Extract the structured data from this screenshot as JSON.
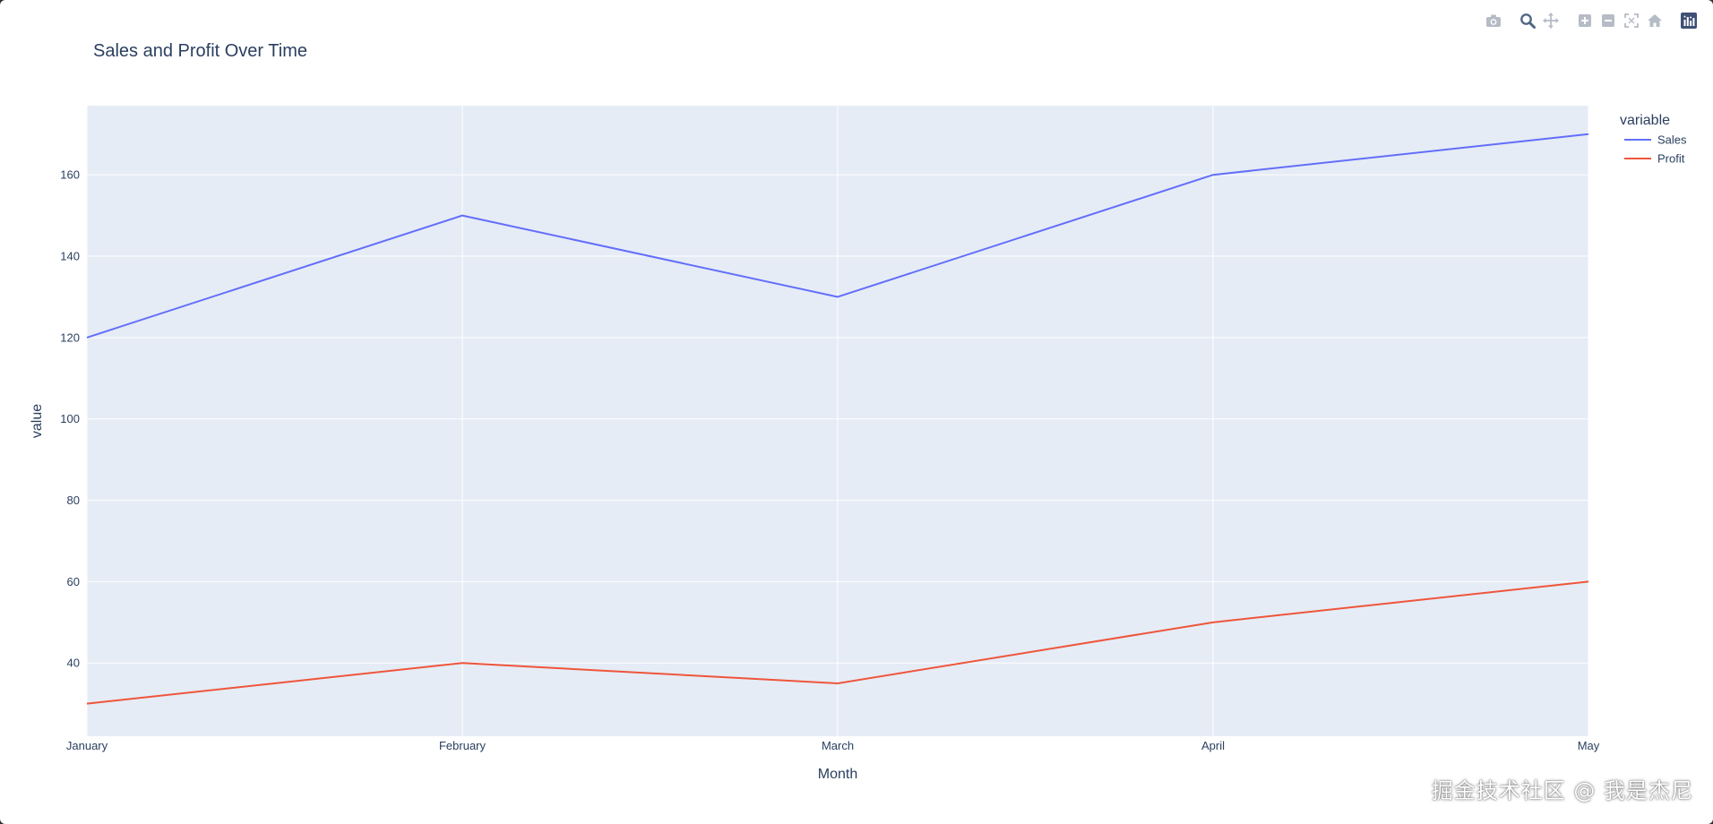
{
  "colors": {
    "plot_bg": "#e5ecf6",
    "grid": "#ffffff",
    "text": "#2a3f5f",
    "modebar_icon": "#b5bcc6",
    "modebar_active": "#506784"
  },
  "modebar": {
    "buttons": [
      {
        "name": "camera-icon"
      },
      {
        "name": "zoom-icon"
      },
      {
        "name": "pan-icon"
      },
      {
        "name": "zoom-in-icon"
      },
      {
        "name": "zoom-out-icon"
      },
      {
        "name": "autoscale-icon"
      },
      {
        "name": "reset-axes-icon"
      },
      {
        "name": "plotly-logo-icon"
      }
    ]
  },
  "chart_data": {
    "type": "line",
    "title": "Sales and Profit Over Time",
    "xlabel": "Month",
    "ylabel": "value",
    "categories": [
      "January",
      "February",
      "March",
      "April",
      "May"
    ],
    "series": [
      {
        "name": "Sales",
        "color": "#636efa",
        "values": [
          120,
          150,
          130,
          160,
          170
        ]
      },
      {
        "name": "Profit",
        "color": "#ef553b",
        "values": [
          30,
          40,
          35,
          50,
          60
        ]
      }
    ],
    "ylim": [
      22,
      177
    ],
    "yticks": [
      40,
      60,
      80,
      100,
      120,
      140,
      160
    ],
    "grid": true,
    "legend": {
      "title": "variable",
      "placement": "top-right"
    }
  },
  "watermark": "掘金技术社区 @ 我是杰尼"
}
